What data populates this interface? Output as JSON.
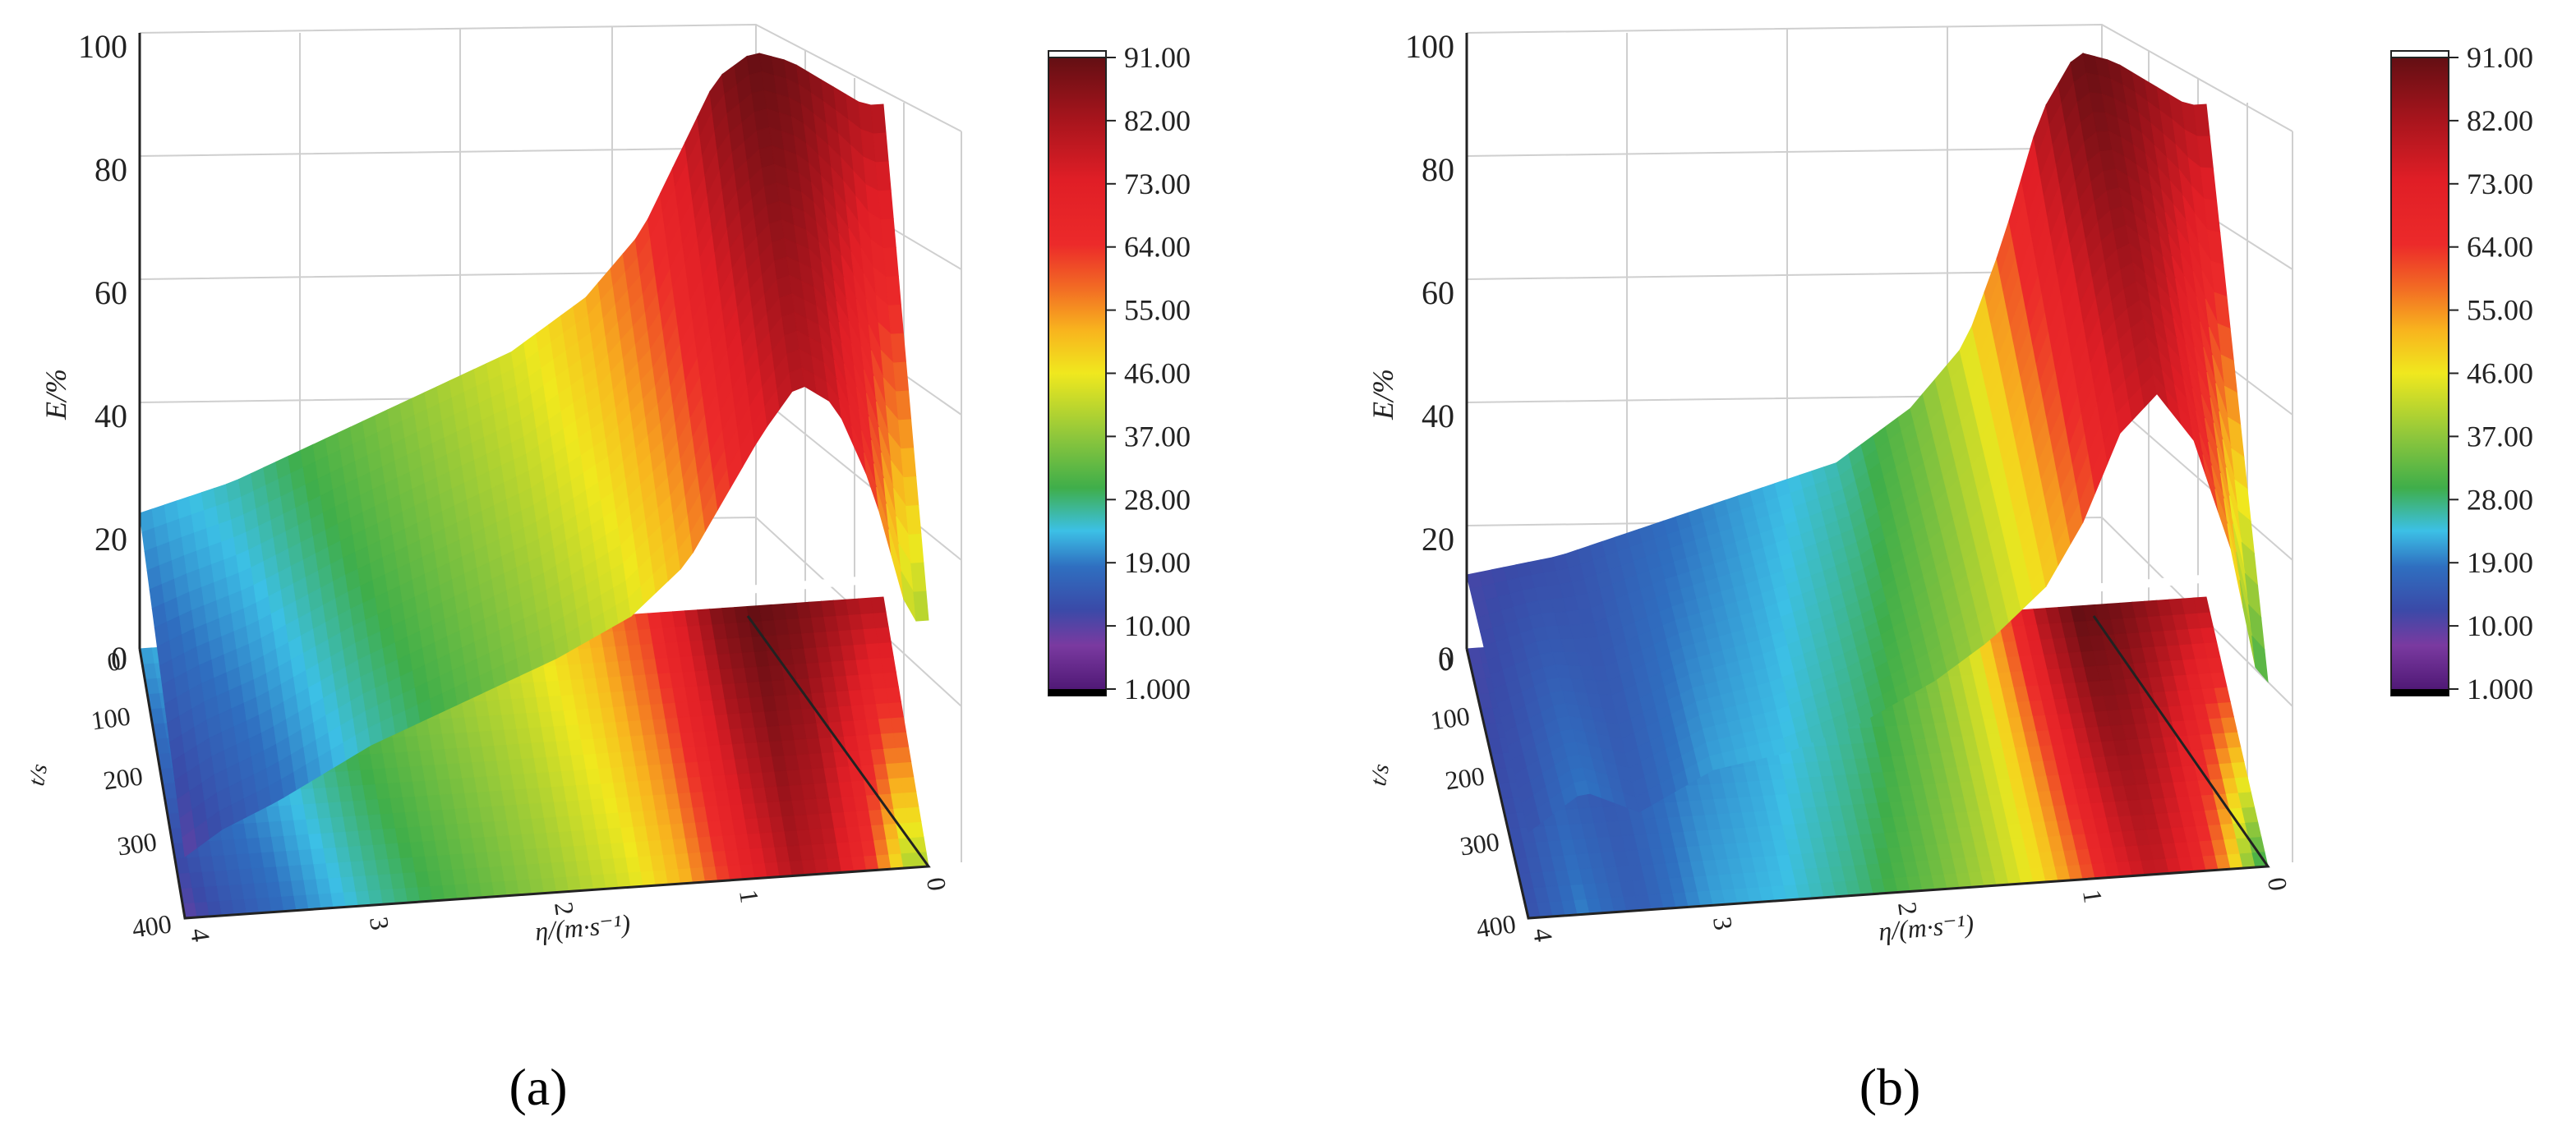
{
  "colorbar": {
    "ticks": [
      "91.00",
      "82.00",
      "73.00",
      "64.00",
      "55.00",
      "46.00",
      "37.00",
      "28.00",
      "19.00",
      "10.00",
      "1.000"
    ],
    "stops": [
      {
        "v": 1,
        "color": "#4a1470"
      },
      {
        "v": 8,
        "color": "#7a3aa0"
      },
      {
        "v": 13,
        "color": "#3a4aa8"
      },
      {
        "v": 19,
        "color": "#2f6fc0"
      },
      {
        "v": 24,
        "color": "#3cc0e6"
      },
      {
        "v": 30,
        "color": "#3fae4a"
      },
      {
        "v": 37,
        "color": "#8cc63c"
      },
      {
        "v": 46,
        "color": "#f0e81e"
      },
      {
        "v": 52,
        "color": "#f8b41e"
      },
      {
        "v": 58,
        "color": "#f26a24"
      },
      {
        "v": 64,
        "color": "#ec2a2a"
      },
      {
        "v": 73,
        "color": "#e01e26"
      },
      {
        "v": 82,
        "color": "#a3141c"
      },
      {
        "v": 91,
        "color": "#5c0e12"
      }
    ]
  },
  "chart_data": [
    {
      "type": "surface3d",
      "panel_label": "(a)",
      "zlabel": "E/%",
      "ylabel": "η/(m·s⁻¹)",
      "xlabel": "t/s",
      "z_ticks": [
        "0",
        "20",
        "40",
        "60",
        "80",
        "100"
      ],
      "x_ticks": [
        "0",
        "100",
        "200",
        "300",
        "400"
      ],
      "y_ticks": [
        "4",
        "3",
        "2",
        "1",
        "0"
      ],
      "zlim": [
        0,
        100
      ],
      "colorbar_range": [
        1,
        91
      ],
      "front_edge_profile": {
        "eta": [
          4.0,
          3.8,
          3.5,
          3.0,
          2.5,
          2.0,
          1.6,
          1.3,
          1.1,
          0.9,
          0.7,
          0.5,
          0.3,
          0.1
        ],
        "E": [
          10,
          14,
          18,
          26,
          32,
          38,
          44,
          52,
          62,
          72,
          80,
          76,
          62,
          40
        ]
      },
      "back_edge_profile": {
        "eta": [
          4.0,
          3.5,
          3.0,
          2.5,
          2.0,
          1.6,
          1.3,
          1.1,
          0.9,
          0.7,
          0.5,
          0.3,
          0.1
        ],
        "E": [
          22,
          26,
          32,
          38,
          44,
          52,
          62,
          74,
          86,
          90,
          88,
          84,
          80
        ]
      }
    },
    {
      "type": "surface3d",
      "panel_label": "(b)",
      "zlabel": "E/%",
      "ylabel": "η/(m·s⁻¹)",
      "xlabel": "t/s",
      "z_ticks": [
        "0",
        "20",
        "40",
        "60",
        "80",
        "100"
      ],
      "x_ticks": [
        "0",
        "100",
        "200",
        "300",
        "400"
      ],
      "y_ticks": [
        "4",
        "3",
        "2",
        "1",
        "0"
      ],
      "zlim": [
        0,
        100
      ],
      "colorbar_range": [
        1,
        91
      ],
      "front_edge_profile": {
        "eta": [
          4.0,
          3.7,
          3.4,
          3.0,
          2.6,
          2.2,
          1.8,
          1.5,
          1.2,
          1.0,
          0.8,
          0.6,
          0.4,
          0.2,
          0.05
        ],
        "E": [
          14,
          20,
          16,
          22,
          24,
          28,
          34,
          40,
          48,
          58,
          72,
          78,
          70,
          52,
          30
        ]
      },
      "back_edge_profile": {
        "eta": [
          4.0,
          3.5,
          3.0,
          2.5,
          2.0,
          1.6,
          1.3,
          1.1,
          0.9,
          0.7,
          0.5,
          0.3,
          0.1
        ],
        "E": [
          12,
          14,
          18,
          22,
          26,
          34,
          44,
          60,
          80,
          90,
          88,
          84,
          80
        ]
      }
    }
  ]
}
